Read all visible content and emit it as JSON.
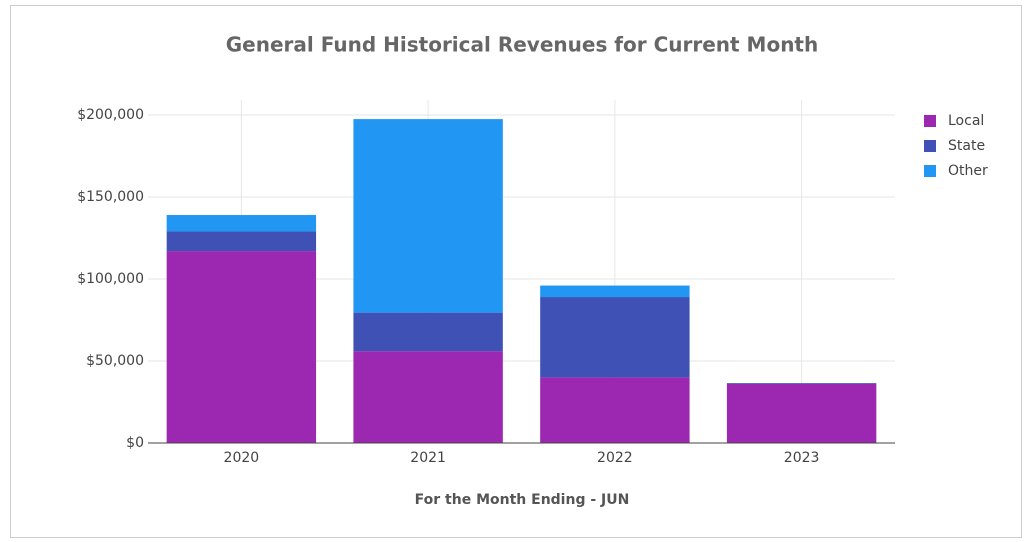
{
  "chart_data": {
    "type": "stacked-bar",
    "title": "General Fund Historical Revenues for Current Month",
    "x_label": "For the Month Ending - JUN",
    "categories": [
      "2020",
      "2021",
      "2022",
      "2023"
    ],
    "series": [
      {
        "name": "Local",
        "color": "#9c27b0",
        "values": [
          117000,
          56000,
          40000,
          36000
        ]
      },
      {
        "name": "State",
        "color": "#3f51b5",
        "values": [
          12000,
          23500,
          49000,
          500
        ]
      },
      {
        "name": "Other",
        "color": "#2196f3",
        "values": [
          10000,
          118000,
          7000,
          0
        ]
      }
    ],
    "ylim": [
      0,
      200000
    ],
    "yticks": [
      {
        "value": 0,
        "label": "$0"
      },
      {
        "value": 50000,
        "label": "$50,000"
      },
      {
        "value": 100000,
        "label": "$100,000"
      },
      {
        "value": 150000,
        "label": "$150,000"
      },
      {
        "value": 200000,
        "label": "$200,000"
      }
    ],
    "grid": true,
    "legend": "right"
  }
}
